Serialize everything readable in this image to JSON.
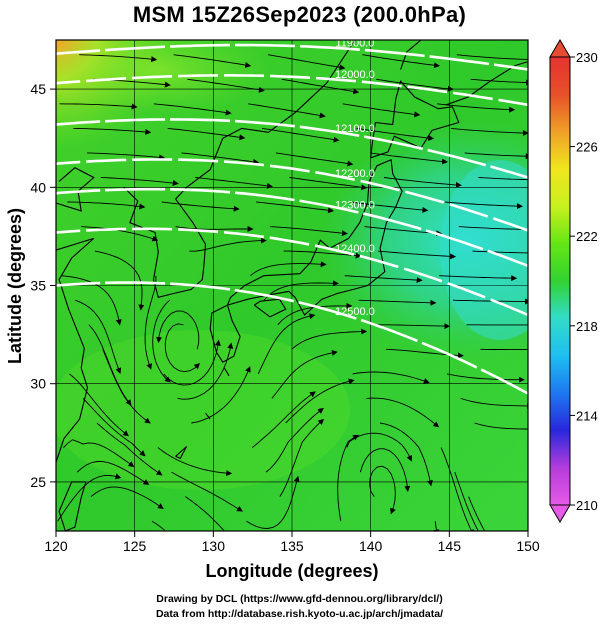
{
  "title": "MSM 15Z26Sep2023 (200.0hPa)",
  "map": {
    "xlabel": "Longitude (degrees)",
    "ylabel": "Latitude  (degrees)",
    "lon_range": [
      120,
      150
    ],
    "lat_range": [
      22.5,
      47.5
    ],
    "lon_ticks": [
      "120",
      "125",
      "130",
      "135",
      "140",
      "145",
      "150"
    ],
    "lat_ticks": [
      "25",
      "30",
      "35",
      "40",
      "45"
    ],
    "contours": [
      {
        "label": "11900.0",
        "lat_west": 46.8,
        "lat_east": 46.0,
        "color": "#ffffff"
      },
      {
        "label": "12000.0",
        "lat_west": 45.3,
        "lat_east": 44.2,
        "color": "#ffffff"
      },
      {
        "label": "12100.0",
        "lat_west": 43.2,
        "lat_east": 40.5,
        "color": "#ffffff"
      },
      {
        "label": "12200.0",
        "lat_west": 41.2,
        "lat_east": 37.8,
        "color": "#ffffff"
      },
      {
        "label": "12300.0",
        "lat_west": 39.7,
        "lat_east": 36.0,
        "color": "#ffffff"
      },
      {
        "label": "12400.0",
        "lat_west": 37.7,
        "lat_east": 33.5,
        "color": "#ffffff"
      },
      {
        "label": "12500.0",
        "lat_west": 35.0,
        "lat_east": 29.5,
        "color": "#ffffff"
      }
    ],
    "field_colors": {
      "warm": "#39d21f",
      "mid": "#29c428",
      "cool_cyan": "#2ed8c0",
      "warm_corner": "#f2a52b"
    }
  },
  "colorbar": {
    "ticks": [
      "230",
      "226",
      "222",
      "218",
      "214",
      "210"
    ],
    "range": [
      210,
      230
    ],
    "stops": [
      "#e65ae6",
      "#b43cdc",
      "#2828dc",
      "#1e78f0",
      "#1ebef0",
      "#32dcc8",
      "#32d232",
      "#64e614",
      "#c8f01e",
      "#f0e61e",
      "#f0a028",
      "#e65028",
      "#e63232"
    ]
  },
  "credits": {
    "line1": "Drawing by DCL (https://www.gfd-dennou.org/library/dcl/)",
    "line2": "Data from http://database.rish.kyoto-u.ac.jp/arch/jmadata/"
  }
}
